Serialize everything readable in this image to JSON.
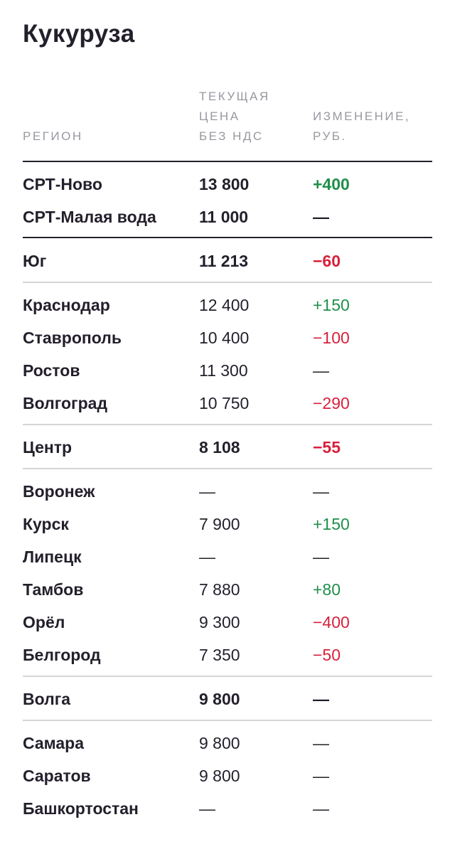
{
  "title": "Кукуруза",
  "columns": {
    "region": "РЕГИОН",
    "price": "ТЕКУЩАЯ\nЦЕНА\nБЕЗ НДС",
    "change": "ИЗМЕНЕНИЕ,\nРУБ."
  },
  "colors": {
    "positive": "#1f8f4a",
    "negative": "#d7213c",
    "text": "#231f2b",
    "header": "#9a97a0"
  },
  "rows": [
    {
      "region": "СРТ-Ново",
      "price": "13 800",
      "change": "+400",
      "trend": "pos",
      "bold": true
    },
    {
      "region": "СРТ-Малая вода",
      "price": "11 000",
      "change": "—",
      "trend": "neu",
      "bold": true
    },
    {
      "region": "Юг",
      "price": "11 213",
      "change": "−60",
      "trend": "neg",
      "bold": true
    },
    {
      "region": "Краснодар",
      "price": "12 400",
      "change": "+150",
      "trend": "pos",
      "bold": false
    },
    {
      "region": "Ставрополь",
      "price": "10 400",
      "change": "−100",
      "trend": "neg",
      "bold": false
    },
    {
      "region": "Ростов",
      "price": "11 300",
      "change": "—",
      "trend": "neu",
      "bold": false
    },
    {
      "region": "Волгоград",
      "price": "10 750",
      "change": "−290",
      "trend": "neg",
      "bold": false
    },
    {
      "region": "Центр",
      "price": "8 108",
      "change": "−55",
      "trend": "neg",
      "bold": true
    },
    {
      "region": "Воронеж",
      "price": "—",
      "change": "—",
      "trend": "neu",
      "bold": false
    },
    {
      "region": "Курск",
      "price": "7 900",
      "change": "+150",
      "trend": "pos",
      "bold": false
    },
    {
      "region": "Липецк",
      "price": "—",
      "change": "—",
      "trend": "neu",
      "bold": false
    },
    {
      "region": "Тамбов",
      "price": "7 880",
      "change": "+80",
      "trend": "pos",
      "bold": false
    },
    {
      "region": "Орёл",
      "price": "9 300",
      "change": "−400",
      "trend": "neg",
      "bold": false
    },
    {
      "region": "Белгород",
      "price": "7 350",
      "change": "−50",
      "trend": "neg",
      "bold": false
    },
    {
      "region": "Волга",
      "price": "9 800",
      "change": "—",
      "trend": "neu",
      "bold": true
    },
    {
      "region": "Самара",
      "price": "9 800",
      "change": "—",
      "trend": "neu",
      "bold": false
    },
    {
      "region": "Саратов",
      "price": "9 800",
      "change": "—",
      "trend": "neu",
      "bold": false
    },
    {
      "region": "Башкортостан",
      "price": "—",
      "change": "—",
      "trend": "neu",
      "bold": false
    }
  ]
}
